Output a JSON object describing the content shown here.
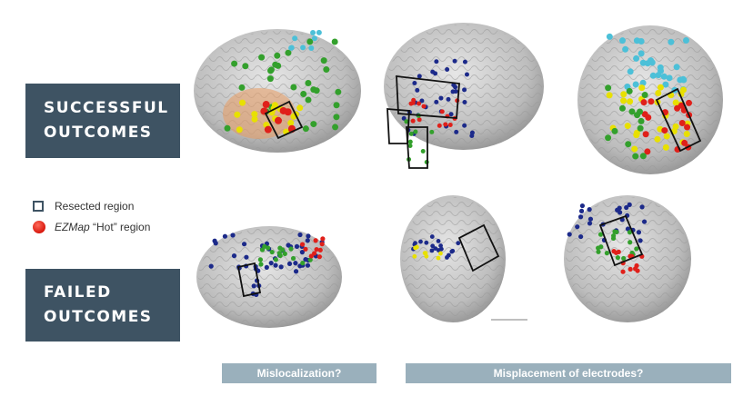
{
  "labels": {
    "successful_line1": "SUCCESSFUL",
    "successful_line2": "OUTCOMES",
    "failed_line1": "FAILED",
    "failed_line2": "OUTCOMES"
  },
  "legend": {
    "resected": "Resected region",
    "hot_italic": "EZMap",
    "hot_rest": " “Hot” region"
  },
  "bottom_bars": {
    "mislocalization": "Mislocalization?",
    "misplacement": "Misplacement of electrodes?"
  },
  "colors": {
    "label_bg": "#3e5363",
    "bar_bg": "#9ab0bc",
    "brain": "#c9c9c9",
    "hot": "#e0201a",
    "electrode_blue": "#1c2a8a",
    "electrode_green": "#33a02c",
    "electrode_yellow": "#e8e000",
    "electrode_cyan": "#4cc0d8"
  },
  "icons": [
    "resected-square-icon",
    "hot-region-dot-icon"
  ]
}
